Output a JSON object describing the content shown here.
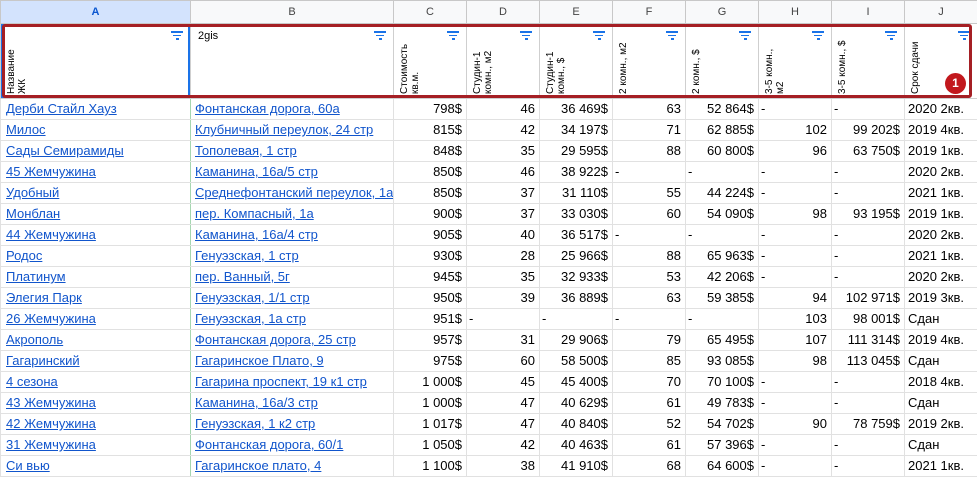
{
  "columns": [
    "A",
    "B",
    "C",
    "D",
    "E",
    "F",
    "G",
    "H",
    "I",
    "J"
  ],
  "headers": [
    {
      "text": "Название\nЖК"
    },
    {
      "text": "2gis"
    },
    {
      "text": "Стоимость\nкв.м."
    },
    {
      "text": "Студин-1\nкомн., м2"
    },
    {
      "text": "Студин-1\nкомн., $"
    },
    {
      "text": "2 комн., м2"
    },
    {
      "text": "2 комн., $"
    },
    {
      "text": "3-5 комн., м2"
    },
    {
      "text": "3-5 комн., $"
    },
    {
      "text": "Срок сдачи"
    }
  ],
  "rows": [
    [
      "Дерби Стайл Хауз",
      "Фонтанская дорога, 60а",
      "798$",
      "46",
      "36 469$",
      "63",
      "52 864$",
      "-",
      "-",
      "2020 2кв."
    ],
    [
      "Милос",
      "Клубничный переулок, 24 стр",
      "815$",
      "42",
      "34 197$",
      "71",
      "62 885$",
      "102",
      "99 202$",
      "2019 4кв."
    ],
    [
      "Сады Семирамиды",
      "Тополевая, 1 стр",
      "848$",
      "35",
      "29 595$",
      "88",
      "60 800$",
      "96",
      "63 750$",
      "2019 1кв."
    ],
    [
      "45 Жемчужина",
      "Каманина, 16а/5 стр",
      "850$",
      "46",
      "38 922$",
      "-",
      "-",
      "-",
      "-",
      "2020 2кв."
    ],
    [
      "Удобный",
      "Среднефонтанский переулок, 1а",
      "850$",
      "37",
      "31 110$",
      "55",
      "44 224$",
      "-",
      "-",
      "2021 1кв."
    ],
    [
      "Монблан",
      "пер. Компасный, 1а",
      "900$",
      "37",
      "33 030$",
      "60",
      "54 090$",
      "98",
      "93 195$",
      "2019 1кв."
    ],
    [
      "44 Жемчужина",
      "Каманина, 16а/4 стр",
      "905$",
      "40",
      "36 517$",
      "-",
      "-",
      "-",
      "-",
      "2020 2кв."
    ],
    [
      "Родос",
      "Генуэзская, 1 стр",
      "930$",
      "28",
      "25 966$",
      "88",
      "65 963$",
      "-",
      "-",
      "2021 1кв."
    ],
    [
      "Платинум",
      "пер. Ванный, 5г",
      "945$",
      "35",
      "32 933$",
      "53",
      "42 206$",
      "-",
      "-",
      "2020 2кв."
    ],
    [
      "Элегия Парк",
      "Генуэзская, 1/1 стр",
      "950$",
      "39",
      "36 889$",
      "63",
      "59 385$",
      "94",
      "102 971$",
      "2019 3кв."
    ],
    [
      "26 Жемчужина",
      "Генуэзская, 1а стр",
      "951$",
      "-",
      "-",
      "-",
      "-",
      "103",
      "98 001$",
      "Сдан"
    ],
    [
      "Акрополь",
      "Фонтанская дорога, 25 стр",
      "957$",
      "31",
      "29 906$",
      "79",
      "65 495$",
      "107",
      "111 314$",
      "2019 4кв."
    ],
    [
      "Гагаринский",
      "Гагаринское Плато, 9",
      "975$",
      "60",
      "58 500$",
      "85",
      "93 085$",
      "98",
      "113 045$",
      "Сдан"
    ],
    [
      "4 сезона",
      "Гагарина проспект, 19 к1 стр",
      "1 000$",
      "45",
      "45 400$",
      "70",
      "70 100$",
      "-",
      "-",
      "2018 4кв."
    ],
    [
      "43 Жемчужина",
      "Каманина, 16а/3 стр",
      "1 000$",
      "47",
      "40 629$",
      "61",
      "49 783$",
      "-",
      "-",
      "Сдан"
    ],
    [
      "42 Жемчужина",
      "Генуэзская, 1 к2 стр",
      "1 017$",
      "47",
      "40 840$",
      "52",
      "54 702$",
      "90",
      "78 759$",
      "2019 2кв."
    ],
    [
      "31 Жемчужина",
      "Фонтанская дорога, 60/1",
      "1 050$",
      "42",
      "40 463$",
      "61",
      "57 396$",
      "-",
      "-",
      "Сдан"
    ],
    [
      "Си вью",
      "Гагаринское плато, 4",
      "1 100$",
      "38",
      "41 910$",
      "68",
      "64 600$",
      "-",
      "-",
      "2021 1кв."
    ]
  ],
  "annotation": {
    "marker": "1",
    "color": "#a51f24"
  }
}
